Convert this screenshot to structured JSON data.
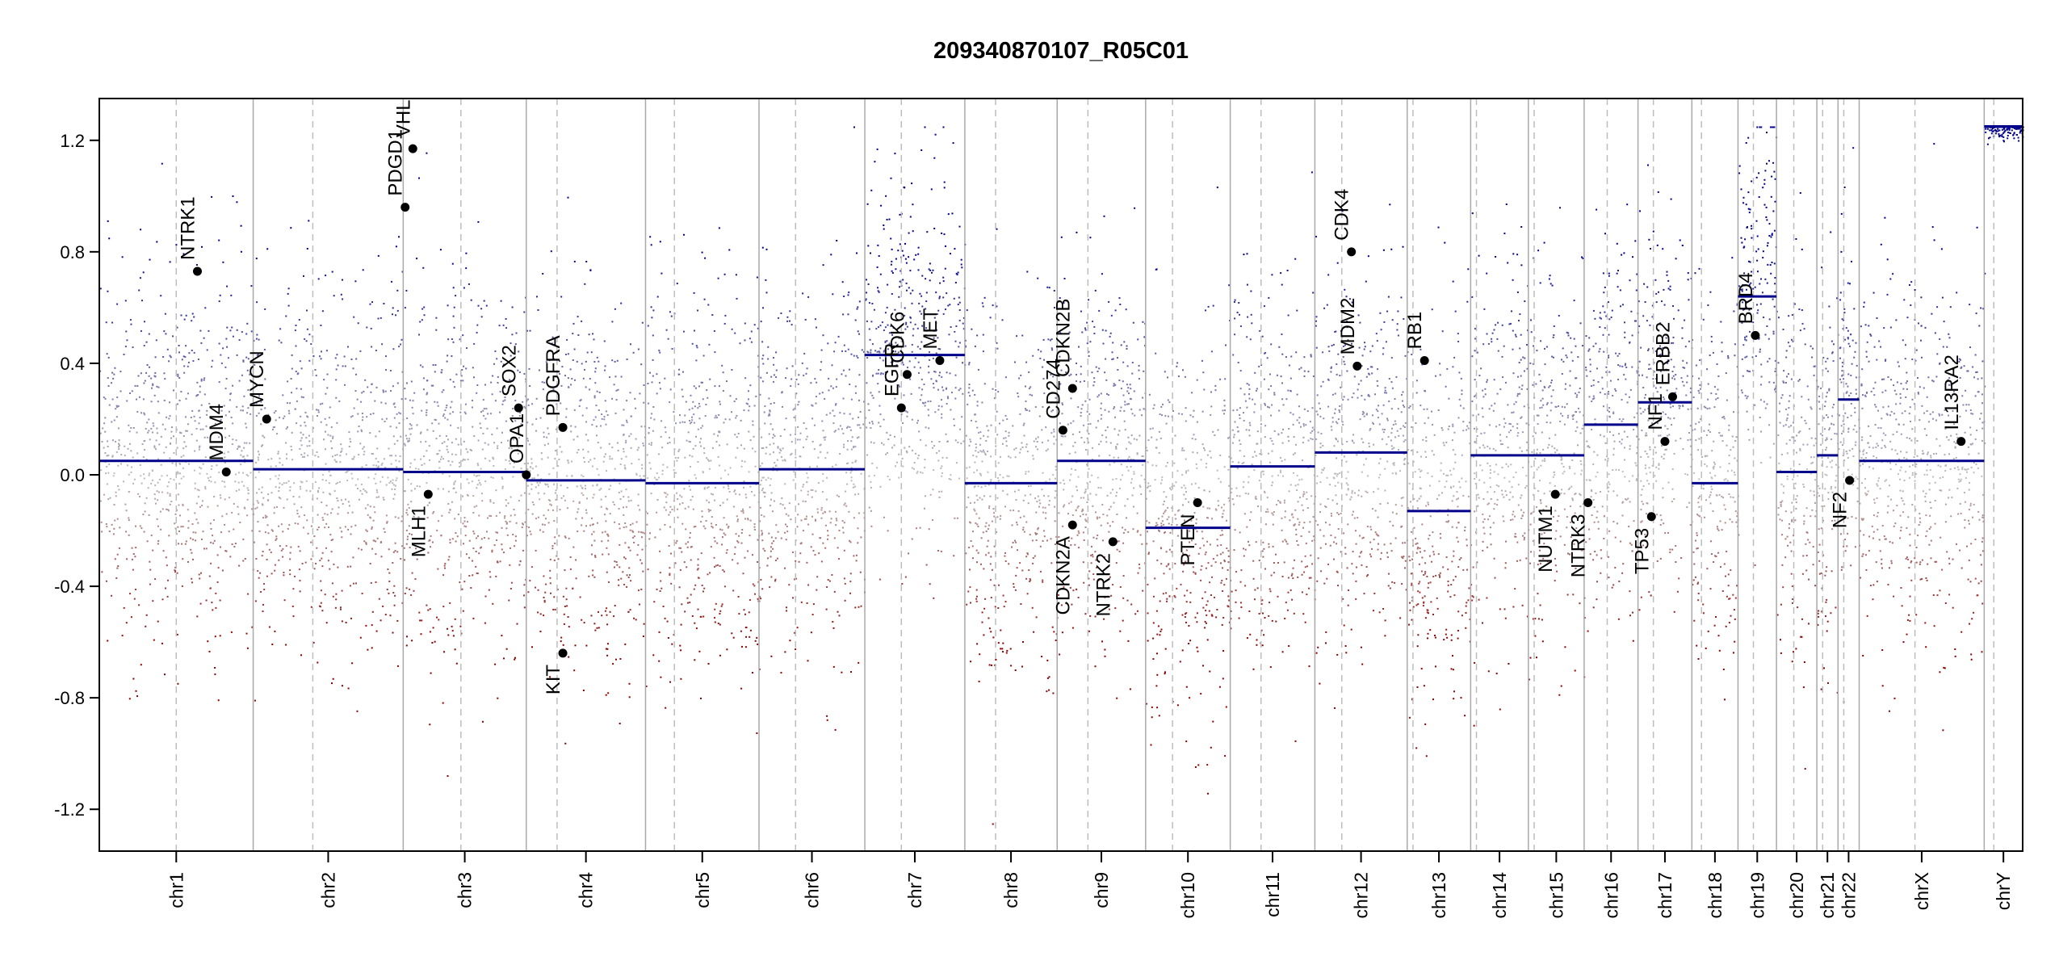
{
  "chart_data": {
    "type": "scatter",
    "title": "209340870107_R05C01",
    "xlabel": "",
    "ylabel": "",
    "ylim": [
      -1.35,
      1.35
    ],
    "yticks": [
      -1.2,
      -0.8,
      -0.4,
      0.0,
      0.4,
      0.8,
      1.2
    ],
    "ytick_labels": [
      "-1.2",
      "-0.8",
      "-0.4",
      "0.0",
      "0.4",
      "0.8",
      "1.2"
    ],
    "x_axis": "genomic position (chromosomes concatenated, unit = fraction of genome)",
    "grid": false,
    "colors": {
      "gain": "#00008b",
      "loss": "#8b0000",
      "neutral": "#bebebe",
      "segment": "#00008b",
      "boundary": "#a9a9a9",
      "gene_point": "#000000"
    },
    "chromosomes": [
      {
        "name": "chr1",
        "start": 0.0,
        "end": 0.08,
        "centromere": 0.04,
        "segment": 0.05
      },
      {
        "name": "chr2",
        "start": 0.08,
        "end": 0.158,
        "centromere": 0.111,
        "segment": 0.02
      },
      {
        "name": "chr3",
        "start": 0.158,
        "end": 0.222,
        "centromere": 0.188,
        "segment": 0.01
      },
      {
        "name": "chr4",
        "start": 0.222,
        "end": 0.284,
        "centromere": 0.238,
        "segment": -0.02
      },
      {
        "name": "chr5",
        "start": 0.284,
        "end": 0.343,
        "centromere": 0.299,
        "segment": -0.03
      },
      {
        "name": "chr6",
        "start": 0.343,
        "end": 0.398,
        "centromere": 0.362,
        "segment": 0.02
      },
      {
        "name": "chr7",
        "start": 0.398,
        "end": 0.45,
        "centromere": 0.417,
        "segment": 0.43
      },
      {
        "name": "chr8",
        "start": 0.45,
        "end": 0.498,
        "centromere": 0.466,
        "segment": -0.03
      },
      {
        "name": "chr9",
        "start": 0.498,
        "end": 0.544,
        "centromere": 0.514,
        "segment": 0.05
      },
      {
        "name": "chr10",
        "start": 0.544,
        "end": 0.588,
        "centromere": 0.558,
        "segment": -0.19
      },
      {
        "name": "chr11",
        "start": 0.588,
        "end": 0.632,
        "centromere": 0.604,
        "segment": 0.03
      },
      {
        "name": "chr12",
        "start": 0.632,
        "end": 0.68,
        "centromere": 0.646,
        "segment": 0.08
      },
      {
        "name": "chr13",
        "start": 0.68,
        "end": 0.713,
        "centromere": 0.683,
        "segment": -0.13
      },
      {
        "name": "chr14",
        "start": 0.713,
        "end": 0.743,
        "centromere": 0.716,
        "segment": 0.07
      },
      {
        "name": "chr15",
        "start": 0.743,
        "end": 0.772,
        "centromere": 0.746,
        "segment": 0.07
      },
      {
        "name": "chr16",
        "start": 0.772,
        "end": 0.8,
        "centromere": 0.784,
        "segment": 0.18
      },
      {
        "name": "chr17",
        "start": 0.8,
        "end": 0.828,
        "centromere": 0.808,
        "segment": 0.26
      },
      {
        "name": "chr18",
        "start": 0.828,
        "end": 0.852,
        "centromere": 0.833,
        "segment": -0.03
      },
      {
        "name": "chr19",
        "start": 0.852,
        "end": 0.872,
        "centromere": 0.86,
        "segment": 0.64
      },
      {
        "name": "chr20",
        "start": 0.872,
        "end": 0.893,
        "centromere": 0.881,
        "segment": 0.01
      },
      {
        "name": "chr21",
        "start": 0.893,
        "end": 0.904,
        "centromere": 0.896,
        "segment": 0.07
      },
      {
        "name": "chr22",
        "start": 0.904,
        "end": 0.915,
        "centromere": 0.907,
        "segment": 0.27
      },
      {
        "name": "chrX",
        "start": 0.915,
        "end": 0.98,
        "centromere": 0.944,
        "segment": 0.05
      },
      {
        "name": "chrY",
        "start": 0.98,
        "end": 1.0,
        "centromere": 0.985,
        "segment": 1.25
      }
    ],
    "genes": [
      {
        "name": "NTRK1",
        "x": 0.051,
        "y": 0.73
      },
      {
        "name": "MDM4",
        "x": 0.066,
        "y": 0.01
      },
      {
        "name": "MYCN",
        "x": 0.087,
        "y": 0.2
      },
      {
        "name": "PDGD1",
        "x": 0.159,
        "y": 0.96
      },
      {
        "name": "VHL",
        "x": 0.163,
        "y": 1.17
      },
      {
        "name": "MLH1",
        "x": 0.171,
        "y": -0.07
      },
      {
        "name": "SOX2",
        "x": 0.218,
        "y": 0.24
      },
      {
        "name": "OPA1",
        "x": 0.222,
        "y": 0.0
      },
      {
        "name": "PDGFRA",
        "x": 0.241,
        "y": 0.17
      },
      {
        "name": "KIT",
        "x": 0.241,
        "y": -0.64
      },
      {
        "name": "EGFR",
        "x": 0.417,
        "y": 0.24
      },
      {
        "name": "CDK6",
        "x": 0.42,
        "y": 0.36
      },
      {
        "name": "MET",
        "x": 0.437,
        "y": 0.41
      },
      {
        "name": "CD274",
        "x": 0.501,
        "y": 0.16
      },
      {
        "name": "CDKN2B",
        "x": 0.506,
        "y": 0.31
      },
      {
        "name": "CDKN2A",
        "x": 0.506,
        "y": -0.18
      },
      {
        "name": "NTRK2",
        "x": 0.527,
        "y": -0.24
      },
      {
        "name": "PTEN",
        "x": 0.571,
        "y": -0.1
      },
      {
        "name": "CDK4",
        "x": 0.651,
        "y": 0.8
      },
      {
        "name": "MDM2",
        "x": 0.654,
        "y": 0.39
      },
      {
        "name": "RB1",
        "x": 0.689,
        "y": 0.41
      },
      {
        "name": "NUTM1",
        "x": 0.757,
        "y": -0.07
      },
      {
        "name": "NTRK3",
        "x": 0.774,
        "y": -0.1
      },
      {
        "name": "TP53",
        "x": 0.807,
        "y": -0.15
      },
      {
        "name": "NF1",
        "x": 0.814,
        "y": 0.12
      },
      {
        "name": "ERBB2",
        "x": 0.818,
        "y": 0.28
      },
      {
        "name": "BRD4",
        "x": 0.861,
        "y": 0.5
      },
      {
        "name": "NF2",
        "x": 0.91,
        "y": -0.02
      },
      {
        "name": "IL13RA2",
        "x": 0.968,
        "y": 0.12
      }
    ]
  }
}
